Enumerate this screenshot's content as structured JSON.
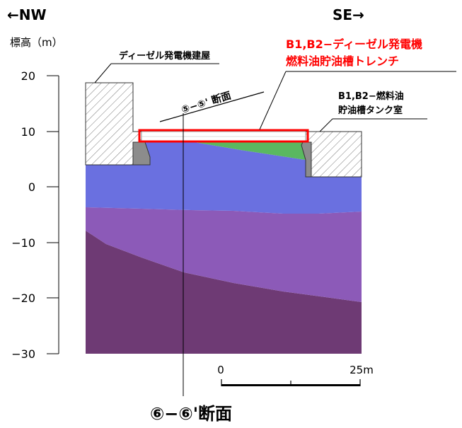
{
  "header": {
    "left_direction": "←NW",
    "right_direction": "SE→"
  },
  "y_axis": {
    "label": "標高（m）",
    "ticks": [
      "20",
      "10",
      "0",
      "−10",
      "−20",
      "−30"
    ]
  },
  "labels": {
    "building": "ディーゼル発電機建屋",
    "trench_line1": "B1,B2−ディーゼル発電機",
    "trench_line2": "燃料油貯油槽トレンチ",
    "tank_room_line1": "B1,B2−燃料油",
    "tank_room_line2": "貯油槽タンク室",
    "cross_section_55": "⑤−⑤' 断面",
    "section_title": "⑥−⑥'断面"
  },
  "scale_bar": {
    "start_label": "0",
    "end_label": "25m"
  },
  "colors": {
    "highlight_red": "#ff0000",
    "layer_blue": "#6a70e0",
    "layer_green": "#5ab860",
    "layer_purple_mid": "#8c5ab8",
    "layer_purple_deep": "#6e3a74",
    "structure_gray": "#8c8c8c"
  }
}
